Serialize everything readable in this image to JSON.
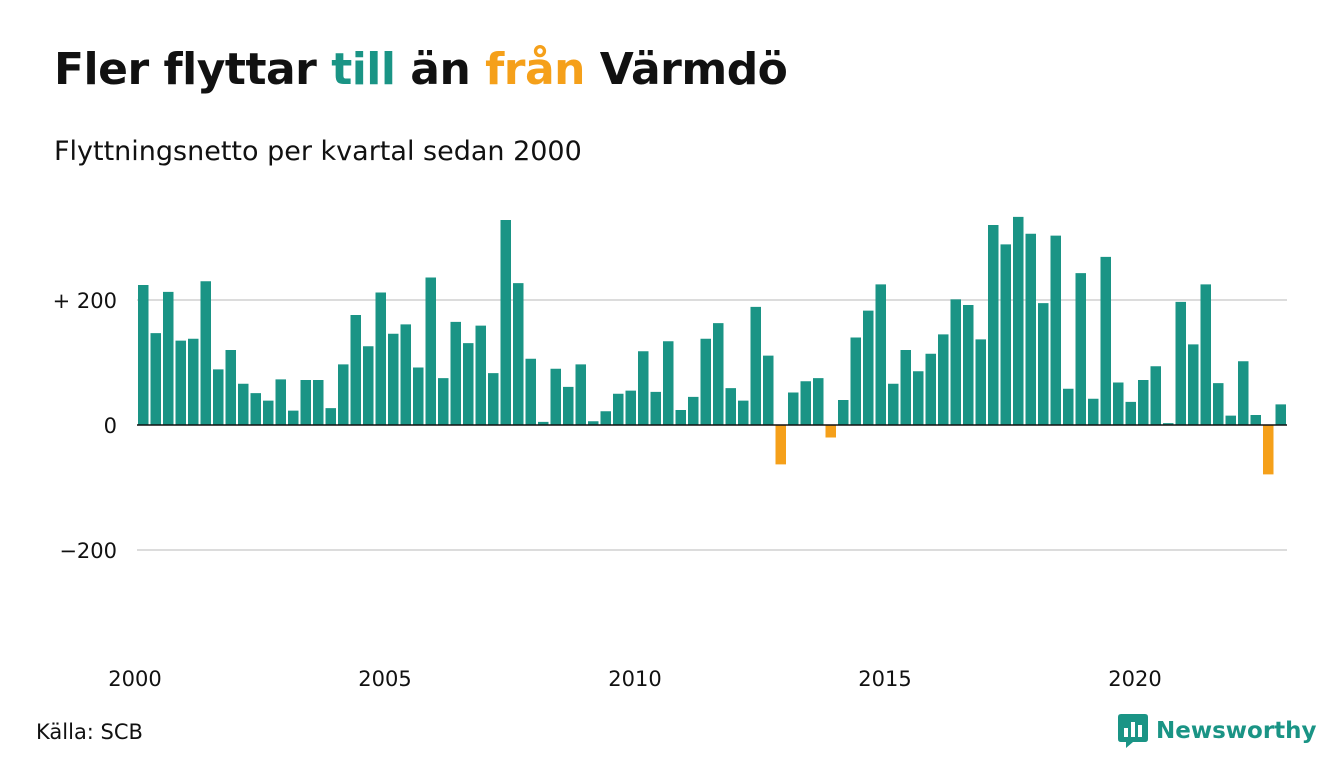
{
  "title": {
    "part1": "Fler flyttar ",
    "highlight_in": "till",
    "part2": " än ",
    "highlight_out": "från",
    "part3": " Värmdö"
  },
  "subtitle": "Flyttningsnetto per kvartal sedan 2000",
  "source": "Källa: SCB",
  "brand": {
    "name": "Newsworthy",
    "icon": "newsworthy-logo-icon"
  },
  "colors": {
    "positive": "#1a9485",
    "negative": "#f5a01a",
    "text": "#111111",
    "grid": "#dcdcdc",
    "brand": "#1a9485"
  },
  "chart_data": {
    "type": "bar",
    "x_start": "2000-Q1",
    "xticks": [
      {
        "label": "2000",
        "index": 0
      },
      {
        "label": "2005",
        "index": 20
      },
      {
        "label": "2010",
        "index": 40
      },
      {
        "label": "2015",
        "index": 60
      },
      {
        "label": "2020",
        "index": 80
      }
    ],
    "ylim": [
      -350,
      350
    ],
    "yticks": [
      {
        "value": 200,
        "label": "+ 200"
      },
      {
        "value": 0,
        "label": "0"
      },
      {
        "value": -200,
        "label": "−200"
      }
    ],
    "grid": true,
    "values": [
      224,
      147,
      213,
      135,
      138,
      230,
      89,
      120,
      66,
      51,
      39,
      73,
      23,
      72,
      72,
      27,
      97,
      176,
      126,
      212,
      146,
      161,
      92,
      236,
      75,
      165,
      131,
      159,
      83,
      328,
      227,
      106,
      5,
      90,
      61,
      97,
      6,
      22,
      50,
      55,
      118,
      53,
      134,
      24,
      45,
      138,
      163,
      59,
      39,
      189,
      111,
      -63,
      52,
      70,
      75,
      -20,
      40,
      140,
      183,
      225,
      66,
      120,
      86,
      114,
      145,
      201,
      192,
      137,
      320,
      289,
      333,
      306,
      195,
      303,
      58,
      243,
      42,
      269,
      68,
      37,
      72,
      94,
      3,
      197,
      129,
      225,
      67,
      15,
      102,
      16,
      -79,
      33
    ]
  }
}
